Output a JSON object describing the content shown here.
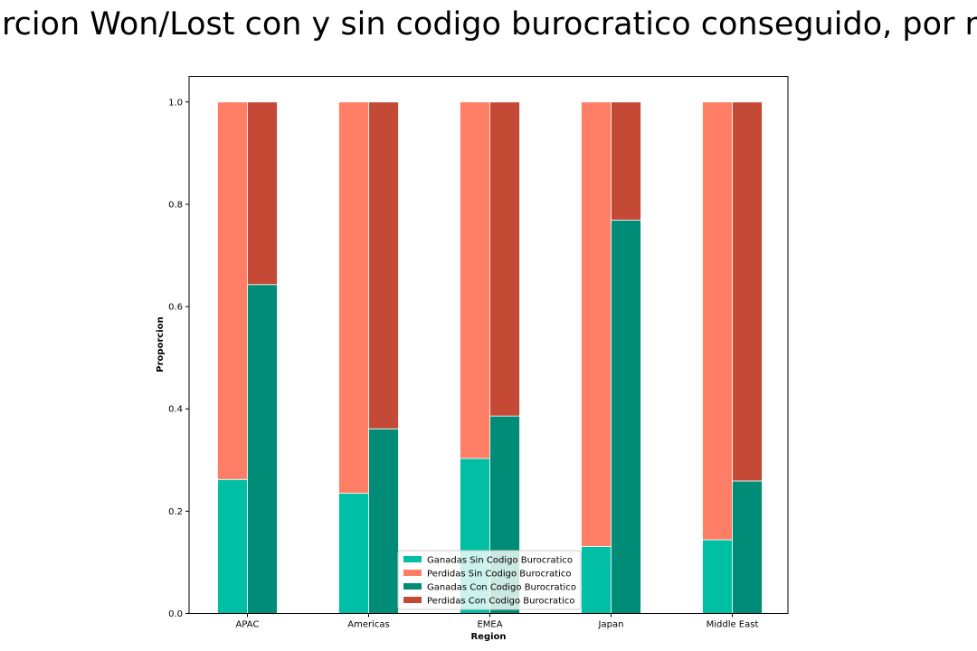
{
  "chart_data": {
    "type": "bar",
    "stacked": true,
    "title": "Proporcion Won/Lost con y sin codigo burocratico conseguido, por region",
    "xlabel": "Region",
    "ylabel": "Proporcion",
    "ylim": [
      0,
      1.05
    ],
    "yticks": [
      "0.0",
      "0.2",
      "0.4",
      "0.6",
      "0.8",
      "1.0"
    ],
    "categories": [
      "APAC",
      "Americas",
      "EMEA",
      "Japan",
      "Middle East"
    ],
    "groups": [
      {
        "label": "Sin Codigo Burocratico",
        "won_name": "Ganadas Sin Codigo Burocratico",
        "lost_name": "Perdidas Sin Codigo Burocratico",
        "won_color": "#00bfa5",
        "lost_color": "#ff7f66",
        "won_values": [
          0.262,
          0.235,
          0.303,
          0.131,
          0.144
        ]
      },
      {
        "label": "Con Codigo Burocratico",
        "won_name": "Ganadas Con Codigo Burocratico",
        "lost_name": "Perdidas Con Codigo Burocratico",
        "won_color": "#008c76",
        "lost_color": "#c44a36",
        "won_values": [
          0.643,
          0.361,
          0.386,
          0.769,
          0.259
        ]
      }
    ],
    "legend": {
      "placement": "lower center",
      "entries": [
        {
          "label": "Ganadas Sin Codigo Burocratico",
          "color": "#00bfa5"
        },
        {
          "label": "Perdidas Sin Codigo Burocratico",
          "color": "#ff7f66"
        },
        {
          "label": "Ganadas Con Codigo Burocratico",
          "color": "#008c76"
        },
        {
          "label": "Perdidas Con Codigo Burocratico",
          "color": "#c44a36"
        }
      ]
    },
    "grid": false
  }
}
